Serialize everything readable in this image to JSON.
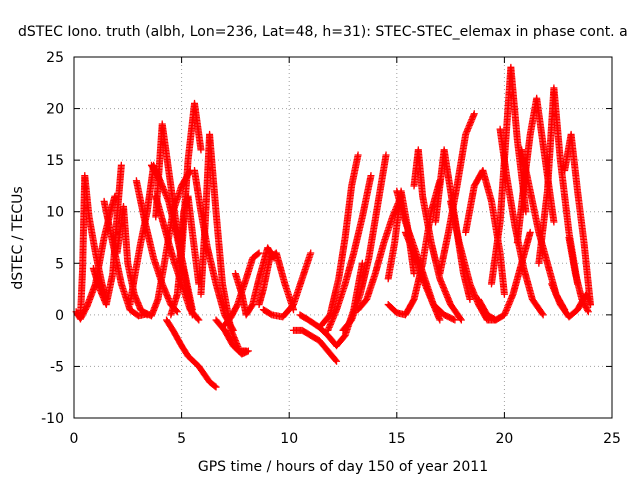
{
  "chart_data": {
    "type": "scatter",
    "title": "dSTEC Iono. truth (albh, Lon=236, Lat=48, h=31): STEC-STEC_elemax in phase cont. a",
    "xlabel": "GPS time / hours of day 150 of year 2011",
    "ylabel": "dSTEC  / TECUs",
    "xlim": [
      0,
      25
    ],
    "ylim": [
      -10,
      25
    ],
    "xticks": [
      0,
      5,
      10,
      15,
      20,
      25
    ],
    "yticks": [
      -10,
      -5,
      0,
      5,
      10,
      15,
      20,
      25
    ],
    "grid": true,
    "marker": "+",
    "color": "#ff0000",
    "series": [
      {
        "x": [
          0.3,
          0.4,
          0.5,
          0.7,
          1.0,
          1.3,
          1.5
        ],
        "y": [
          -0.2,
          4.5,
          13.5,
          9.5,
          6.0,
          3.0,
          1.5
        ]
      },
      {
        "x": [
          0.1,
          0.3,
          0.6,
          1.0,
          1.4,
          1.7,
          1.9
        ],
        "y": [
          0.3,
          -0.4,
          0.8,
          3.0,
          7.5,
          10.0,
          11.5
        ]
      },
      {
        "x": [
          0.9,
          1.2,
          1.5,
          1.8,
          2.0,
          2.2
        ],
        "y": [
          4.5,
          2.5,
          1.0,
          4.0,
          9.5,
          14.5
        ]
      },
      {
        "x": [
          1.4,
          1.8,
          2.2,
          2.6,
          3.0,
          3.4
        ],
        "y": [
          11.0,
          7.0,
          3.0,
          0.5,
          -0.1,
          0.1
        ]
      },
      {
        "x": [
          2.0,
          2.3,
          2.5,
          2.8,
          3.1,
          3.4
        ],
        "y": [
          6.0,
          10.5,
          5.0,
          2.0,
          0.5,
          0.0
        ]
      },
      {
        "x": [
          2.6,
          2.8,
          3.1,
          3.4,
          3.7,
          4.0
        ],
        "y": [
          1.0,
          3.5,
          7.0,
          10.0,
          14.5,
          13.0
        ]
      },
      {
        "x": [
          2.9,
          3.3,
          3.7,
          4.1,
          4.5,
          4.8
        ],
        "y": [
          13.0,
          9.0,
          5.5,
          3.0,
          1.0,
          0.3
        ]
      },
      {
        "x": [
          3.3,
          3.6,
          3.9,
          4.2,
          4.6,
          5.0,
          5.4
        ],
        "y": [
          0.2,
          -0.1,
          1.5,
          5.0,
          10.0,
          12.5,
          14.0
        ]
      },
      {
        "x": [
          3.6,
          4.0,
          4.4,
          4.8,
          5.2,
          5.5
        ],
        "y": [
          14.5,
          13.0,
          11.0,
          7.5,
          3.5,
          0.5
        ]
      },
      {
        "x": [
          3.8,
          4.2,
          4.6,
          5.0,
          5.4,
          5.8
        ],
        "y": [
          11.5,
          8.5,
          5.5,
          3.0,
          0.5,
          -0.5
        ]
      },
      {
        "x": [
          3.8,
          4.1,
          4.4,
          4.8,
          5.2,
          5.5
        ],
        "y": [
          9.5,
          18.5,
          14.0,
          8.0,
          3.0,
          0.0
        ]
      },
      {
        "x": [
          4.3,
          4.6,
          5.0,
          5.3,
          5.8,
          6.3,
          6.6
        ],
        "y": [
          -0.5,
          -1.5,
          -3.0,
          -4.0,
          -5.0,
          -6.5,
          -7.0
        ]
      },
      {
        "x": [
          4.5,
          4.8,
          5.0,
          5.3,
          5.6,
          5.9
        ],
        "y": [
          0.0,
          2.0,
          6.0,
          15.0,
          20.5,
          16.0
        ]
      },
      {
        "x": [
          4.9,
          5.1,
          5.3,
          5.5,
          5.8
        ],
        "y": [
          5.0,
          10.0,
          11.5,
          8.0,
          3.0
        ]
      },
      {
        "x": [
          5.6,
          5.9,
          6.2,
          6.6,
          7.0,
          7.4
        ],
        "y": [
          14.0,
          10.0,
          6.5,
          3.0,
          0.0,
          -1.5
        ]
      },
      {
        "x": [
          5.9,
          6.1,
          6.3,
          6.6,
          6.9,
          7.3,
          7.7,
          8.0
        ],
        "y": [
          2.0,
          9.0,
          17.5,
          10.0,
          3.0,
          -1.5,
          -3.5,
          -3.5
        ]
      },
      {
        "x": [
          6.6,
          7.0,
          7.4,
          7.8,
          8.1
        ],
        "y": [
          -0.5,
          -1.5,
          -3.0,
          -3.8,
          -3.5
        ]
      },
      {
        "x": [
          7.0,
          7.3,
          7.6,
          8.0,
          8.3,
          8.6
        ],
        "y": [
          -1.0,
          -0.2,
          1.0,
          3.5,
          5.5,
          6.0
        ]
      },
      {
        "x": [
          7.5,
          7.8,
          8.0,
          8.3,
          8.6,
          9.0,
          9.3
        ],
        "y": [
          4.0,
          2.0,
          0.0,
          1.0,
          3.5,
          6.5,
          5.5
        ]
      },
      {
        "x": [
          8.6,
          8.8,
          9.1,
          9.4,
          9.8,
          10.2
        ],
        "y": [
          1.0,
          2.5,
          5.5,
          6.0,
          3.0,
          0.5
        ]
      },
      {
        "x": [
          8.8,
          9.2,
          9.7,
          10.2,
          10.6,
          11.0
        ],
        "y": [
          0.5,
          0.0,
          -0.2,
          1.0,
          3.5,
          6.0
        ]
      },
      {
        "x": [
          10.2,
          10.6,
          11.0,
          11.4,
          11.8,
          12.2
        ],
        "y": [
          -1.5,
          -1.5,
          -2.0,
          -2.5,
          -3.5,
          -4.5
        ]
      },
      {
        "x": [
          10.5,
          10.9,
          11.4,
          11.8,
          12.2,
          12.6,
          13.0,
          13.4
        ],
        "y": [
          0.0,
          -0.5,
          -1.2,
          -2.0,
          -3.0,
          -2.0,
          0.5,
          5.0
        ]
      },
      {
        "x": [
          11.5,
          11.9,
          12.3,
          12.6,
          12.9,
          13.2
        ],
        "y": [
          -1.0,
          0.0,
          3.5,
          7.5,
          12.5,
          15.5
        ]
      },
      {
        "x": [
          11.8,
          12.2,
          12.6,
          13.0,
          13.4,
          13.8
        ],
        "y": [
          -1.5,
          0.5,
          3.0,
          6.0,
          9.5,
          13.5
        ]
      },
      {
        "x": [
          12.5,
          12.9,
          13.3,
          13.7,
          14.1,
          14.5
        ],
        "y": [
          -1.5,
          -0.5,
          2.0,
          5.5,
          10.5,
          15.5
        ]
      },
      {
        "x": [
          13.2,
          13.6,
          14.0,
          14.4,
          14.8,
          15.2
        ],
        "y": [
          0.5,
          1.5,
          4.0,
          7.0,
          9.5,
          11.5
        ]
      },
      {
        "x": [
          14.6,
          14.9,
          15.2,
          15.5,
          15.8
        ],
        "y": [
          3.5,
          7.0,
          12.0,
          8.5,
          4.0
        ]
      },
      {
        "x": [
          14.6,
          15.0,
          15.4,
          15.8,
          16.2,
          16.6,
          17.0
        ],
        "y": [
          1.0,
          0.2,
          0.0,
          1.5,
          5.0,
          10.0,
          13.0
        ]
      },
      {
        "x": [
          15.0,
          15.4,
          15.9,
          16.3,
          16.7,
          17.0
        ],
        "y": [
          12.0,
          9.0,
          6.0,
          3.5,
          1.0,
          -0.5
        ]
      },
      {
        "x": [
          15.4,
          15.8,
          16.3,
          16.7,
          17.2,
          17.7
        ],
        "y": [
          8.0,
          6.0,
          3.0,
          1.0,
          0.0,
          -0.5
        ]
      },
      {
        "x": [
          15.8,
          16.0,
          16.2,
          16.6,
          17.0,
          17.5,
          18.0
        ],
        "y": [
          12.5,
          16.0,
          11.5,
          7.0,
          3.5,
          1.0,
          -0.5
        ]
      },
      {
        "x": [
          16.8,
          17.2,
          17.5,
          17.8,
          18.1,
          18.4
        ],
        "y": [
          9.0,
          16.0,
          12.0,
          8.0,
          4.0,
          1.5
        ]
      },
      {
        "x": [
          17.0,
          17.4,
          17.8,
          18.2,
          18.6
        ],
        "y": [
          4.0,
          8.0,
          12.5,
          17.5,
          19.5
        ]
      },
      {
        "x": [
          17.5,
          17.9,
          18.4,
          18.8,
          19.2,
          19.6
        ],
        "y": [
          11.0,
          7.0,
          3.0,
          1.0,
          -0.5,
          -0.5
        ]
      },
      {
        "x": [
          18.2,
          18.6,
          19.0,
          19.4,
          19.8,
          20.0
        ],
        "y": [
          8.0,
          12.5,
          14.0,
          11.0,
          6.0,
          2.0
        ]
      },
      {
        "x": [
          18.8,
          19.2,
          19.6,
          20.0,
          20.4,
          20.8,
          21.2
        ],
        "y": [
          1.5,
          0.0,
          -0.5,
          0.0,
          2.0,
          5.0,
          8.0
        ]
      },
      {
        "x": [
          19.4,
          19.8,
          20.1,
          20.3,
          20.6,
          21.0
        ],
        "y": [
          3.0,
          9.0,
          18.0,
          24.0,
          17.0,
          10.0
        ]
      },
      {
        "x": [
          19.8,
          20.1,
          20.5,
          20.9,
          21.3,
          21.8
        ],
        "y": [
          18.0,
          13.5,
          8.5,
          4.5,
          1.5,
          0.0
        ]
      },
      {
        "x": [
          20.6,
          20.9,
          21.2,
          21.5,
          21.9,
          22.3
        ],
        "y": [
          7.0,
          12.5,
          17.5,
          21.0,
          15.0,
          9.0
        ]
      },
      {
        "x": [
          20.8,
          21.2,
          21.6,
          22.0,
          22.4,
          22.8
        ],
        "y": [
          16.0,
          12.0,
          8.0,
          5.0,
          2.0,
          0.5
        ]
      },
      {
        "x": [
          21.6,
          22.0,
          22.3,
          22.6,
          23.0,
          23.4
        ],
        "y": [
          5.0,
          12.0,
          22.0,
          15.0,
          8.0,
          3.0
        ]
      },
      {
        "x": [
          22.2,
          22.6,
          23.0,
          23.4,
          23.8,
          24.0
        ],
        "y": [
          3.0,
          1.0,
          -0.2,
          0.5,
          2.0,
          1.0
        ]
      },
      {
        "x": [
          22.8,
          23.1,
          23.4,
          23.7,
          24.0
        ],
        "y": [
          14.0,
          17.5,
          12.0,
          7.0,
          1.0
        ]
      },
      {
        "x": [
          23.0,
          23.3,
          23.6,
          23.9
        ],
        "y": [
          7.5,
          4.0,
          1.5,
          0.3
        ]
      }
    ]
  }
}
